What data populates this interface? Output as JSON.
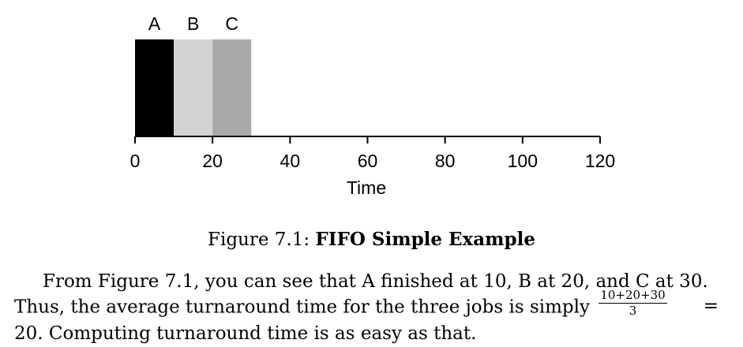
{
  "chart_data": {
    "type": "bar",
    "orientation": "horizontal-timeline",
    "jobs": [
      {
        "name": "A",
        "start": 0,
        "end": 10,
        "color": "#000000"
      },
      {
        "name": "B",
        "start": 10,
        "end": 20,
        "color": "#d3d3d3"
      },
      {
        "name": "C",
        "start": 20,
        "end": 30,
        "color": "#a9a9a9"
      }
    ],
    "xlabel": "Time",
    "xticks": [
      "0",
      "20",
      "40",
      "60",
      "80",
      "100",
      "120"
    ],
    "xlim": [
      0,
      120
    ],
    "grid": false
  },
  "caption": {
    "prefix": "Figure 7.1: ",
    "title": "FIFO Simple Example"
  },
  "paragraph": {
    "line1": "From Figure 7.1, you can see that A finished at 10, B at 20, and C at 30.",
    "line2_text": "Thus, the average turnaround time for the three jobs is simply",
    "frac_num": "10+20+30",
    "frac_den": "3",
    "equals": "=",
    "line3": "20. Computing turnaround time is as easy as that."
  }
}
